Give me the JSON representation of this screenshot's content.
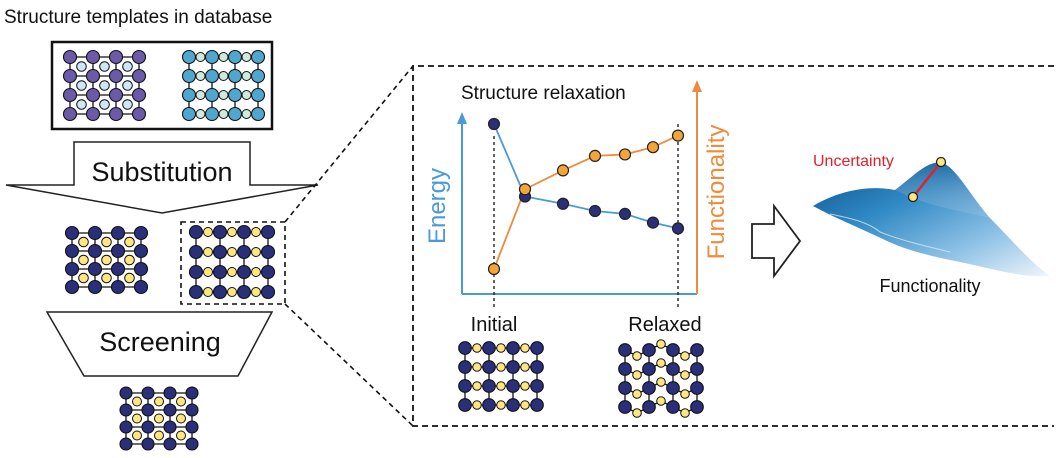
{
  "colors": {
    "navy": "#2a2f7a",
    "purple": "#6a5aa8",
    "teal": "#4fa7cf",
    "pale_blue": "#cfe6f6",
    "pale_green": "#cfeadb",
    "yellow": "#ffe680",
    "orange": "#f4a53a",
    "energy_blue": "#4a9ad8",
    "functionality_orange": "#f08a3c",
    "uncertainty_red": "#e0202a"
  },
  "workflow": {
    "database_title": "Structure templates in database",
    "substitution_label": "Substitution",
    "screening_label": "Screening"
  },
  "relaxation": {
    "title": "Structure relaxation",
    "energy_label": "Energy",
    "functionality_label": "Functionality",
    "initial_label": "Initial",
    "relaxed_label": "Relaxed",
    "chart_data": {
      "type": "line",
      "x": [
        0,
        1,
        2,
        3,
        4,
        5,
        6
      ],
      "series": [
        {
          "name": "Energy",
          "values": [
            1.0,
            0.5,
            0.45,
            0.4,
            0.38,
            0.32,
            0.28
          ]
        },
        {
          "name": "Functionality",
          "values": [
            0.0,
            0.55,
            0.68,
            0.78,
            0.79,
            0.84,
            0.92
          ]
        }
      ]
    }
  },
  "landscape": {
    "uncertainty_label": "Uncertainty",
    "functionality_label": "Functionality"
  },
  "icons": {
    "process_arrow": "hollow-right-arrow-icon"
  }
}
